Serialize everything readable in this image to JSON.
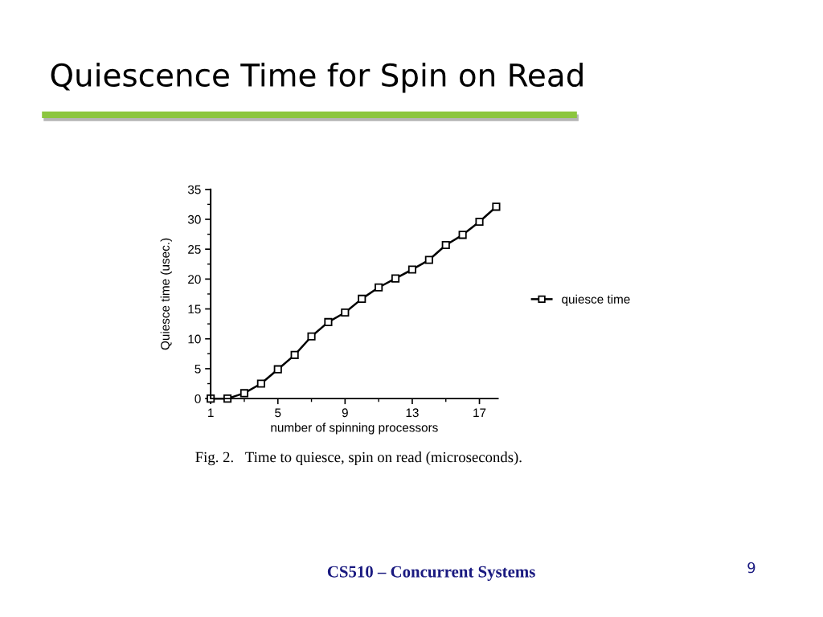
{
  "chart_data": {
    "type": "line",
    "title": "Quiescence Time for Spin on Read",
    "xlabel": "number of spinning processors",
    "ylabel": "Quiesce time (usec.)",
    "annotations": [
      "Fig. 2.   Time to quiesce, spin on read (microseconds).",
      "CS510 – Concurrent Systems",
      "9"
    ],
    "x": [
      1,
      2,
      3,
      4,
      5,
      6,
      7,
      8,
      9,
      10,
      11,
      12,
      13,
      14,
      15,
      16,
      17,
      18
    ],
    "series": [
      {
        "name": "quiesce time",
        "color": "#000000",
        "values": [
          0,
          0,
          0.9,
          2.5,
          4.9,
          7.3,
          10.4,
          12.8,
          14.4,
          16.7,
          18.6,
          20.1,
          21.6,
          23.2,
          25.7,
          27.4,
          29.6,
          32.1
        ]
      }
    ],
    "xlim": [
      1,
      18.1
    ],
    "xticks": [
      1,
      {
        "value": 3,
        "label": null
      },
      5,
      {
        "value": 7,
        "label": null
      },
      9,
      {
        "value": 11,
        "label": null
      },
      13,
      {
        "value": 15,
        "label": null
      },
      17
    ],
    "ylim": [
      0,
      35
    ],
    "yticks": [
      0,
      {
        "value": 2.5,
        "label": null
      },
      5,
      {
        "value": 7.5,
        "label": null
      },
      10,
      {
        "value": 12.5,
        "label": null
      },
      15,
      {
        "value": 17.5,
        "label": null
      },
      20,
      {
        "value": 22.5,
        "label": null
      },
      25,
      {
        "value": 27.5,
        "label": null
      },
      30,
      {
        "value": 32.5,
        "label": null
      },
      35
    ],
    "marker": "square",
    "line_style": "solid",
    "legend": "right"
  }
}
